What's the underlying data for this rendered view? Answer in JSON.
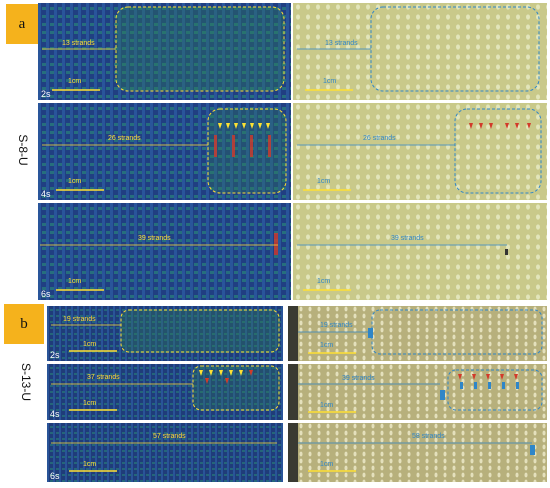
{
  "colors": {
    "label_bg": "#f5b21c",
    "ir_bg": "#1f3c7a",
    "photo_bg": "#c9c98a",
    "yellow": "#ffe033",
    "blue": "#2f86c8",
    "red": "#d23a2a",
    "photo_dark_bg": "#b7b07c"
  },
  "group_a": {
    "label": "a",
    "side_label": "S-8-U",
    "rows": [
      {
        "time": "2s",
        "ir_strands": "13 strands",
        "photo_strands": "13 strands",
        "scale": "1cm"
      },
      {
        "time": "4s",
        "ir_strands": "26 strands",
        "photo_strands": "26 strands",
        "scale": "1cm"
      },
      {
        "time": "6s",
        "ir_strands": "39 strands",
        "photo_strands": "39 strands",
        "scale": "1cm"
      }
    ]
  },
  "group_b": {
    "label": "b",
    "side_label": "S-13-U",
    "rows": [
      {
        "time": "2s",
        "ir_strands": "19 strands",
        "photo_strands": "19 strands",
        "scale": "1cm"
      },
      {
        "time": "4s",
        "ir_strands": "37 strands",
        "photo_strands": "39 strands",
        "scale": "1cm"
      },
      {
        "time": "6s",
        "ir_strands": "57 strands",
        "photo_strands": "58 strands",
        "scale": "1cm"
      }
    ]
  }
}
